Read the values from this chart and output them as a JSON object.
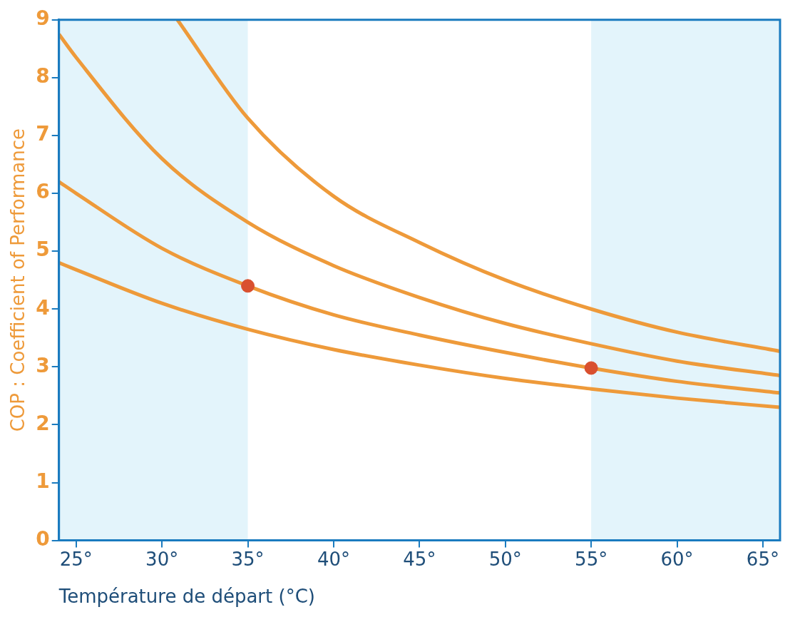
{
  "chart_data": {
    "type": "line",
    "xlabel": "Température de départ (°C)",
    "ylabel": "COP : Coefficient of Performance",
    "xlim": [
      24,
      66
    ],
    "xticks": [
      {
        "value": 25,
        "label": "25°"
      },
      {
        "value": 30,
        "label": "30°"
      },
      {
        "value": 35,
        "label": "35°"
      },
      {
        "value": 40,
        "label": "40°"
      },
      {
        "value": 45,
        "label": "45°"
      },
      {
        "value": 50,
        "label": "50°"
      },
      {
        "value": 55,
        "label": "55°"
      },
      {
        "value": 60,
        "label": "60°"
      },
      {
        "value": 65,
        "label": "65°"
      }
    ],
    "ylim": [
      0,
      9
    ],
    "yticks": [
      0,
      1,
      2,
      3,
      4,
      5,
      6,
      7,
      8,
      9
    ],
    "grid": false,
    "bands": [
      {
        "axis": "x",
        "from": 24,
        "to": 35,
        "color": "#e3f4fb"
      },
      {
        "axis": "x",
        "from": 55,
        "to": 66,
        "color": "#e3f4fb"
      }
    ],
    "series": [
      {
        "color": "#ee9a3a",
        "x": [
          24,
          25,
          30,
          35,
          40,
          45,
          50,
          55,
          60,
          66
        ],
        "values": [
          4.8,
          4.68,
          4.1,
          3.65,
          3.3,
          3.03,
          2.8,
          2.62,
          2.46,
          2.3
        ]
      },
      {
        "color": "#ee9a3a",
        "x": [
          24,
          25,
          30,
          35,
          40,
          45,
          50,
          55,
          60,
          66
        ],
        "values": [
          6.2,
          6.0,
          5.05,
          4.4,
          3.9,
          3.55,
          3.25,
          2.98,
          2.75,
          2.55
        ]
      },
      {
        "color": "#ee9a3a",
        "x": [
          24,
          25,
          30,
          35,
          40,
          45,
          50,
          55,
          60,
          66
        ],
        "values": [
          8.75,
          8.35,
          6.6,
          5.5,
          4.75,
          4.2,
          3.75,
          3.4,
          3.1,
          2.85
        ]
      },
      {
        "color": "#ee9a3a",
        "x": [
          30.9,
          35,
          40,
          45,
          50,
          55,
          60,
          66
        ],
        "values": [
          9.0,
          7.3,
          5.95,
          5.15,
          4.5,
          4.0,
          3.6,
          3.27
        ]
      },
      {
        "type": "scatter",
        "color": "#d9502f",
        "x": [
          35,
          55
        ],
        "values": [
          4.4,
          2.98
        ]
      }
    ]
  }
}
